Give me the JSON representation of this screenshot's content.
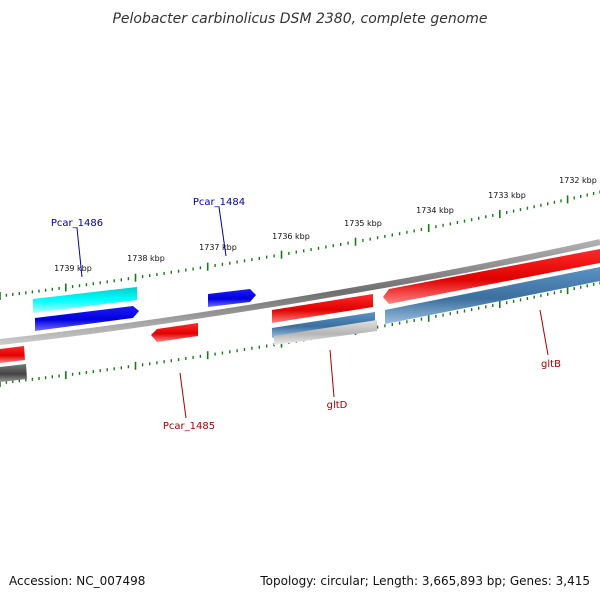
{
  "title": "Pelobacter carbinolicus DSM 2380, complete genome",
  "scale_labels": [
    "1739 kbp",
    "1738 kbp",
    "1737 kbp",
    "1736 kbp",
    "1735 kbp",
    "1734 kbp",
    "1733 kbp",
    "1732 kbp"
  ],
  "gene_labels": {
    "pcar_1486": "Pcar_1486",
    "pcar_1484": "Pcar_1484",
    "pcar_1485": "Pcar_1485",
    "gltD": "gltD",
    "gltB": "gltB"
  },
  "footer": {
    "accession": "Accession: NC_007498",
    "stats": "Topology: circular; Length: 3,665,893 bp; Genes: 3,415"
  },
  "colors": {
    "backbone": "#8a8a8a",
    "scale_tick": "#1a7a1a",
    "forward_gene": "#ee0000",
    "reverse_gene": "#0000ee",
    "cyan_gene": "#00e5ee",
    "steel_gene": "#4682b4",
    "grey_gene": "#c8c8c8",
    "dark_grey_gene": "#555555",
    "label_blue": "#0000aa",
    "label_red": "#aa0000"
  }
}
